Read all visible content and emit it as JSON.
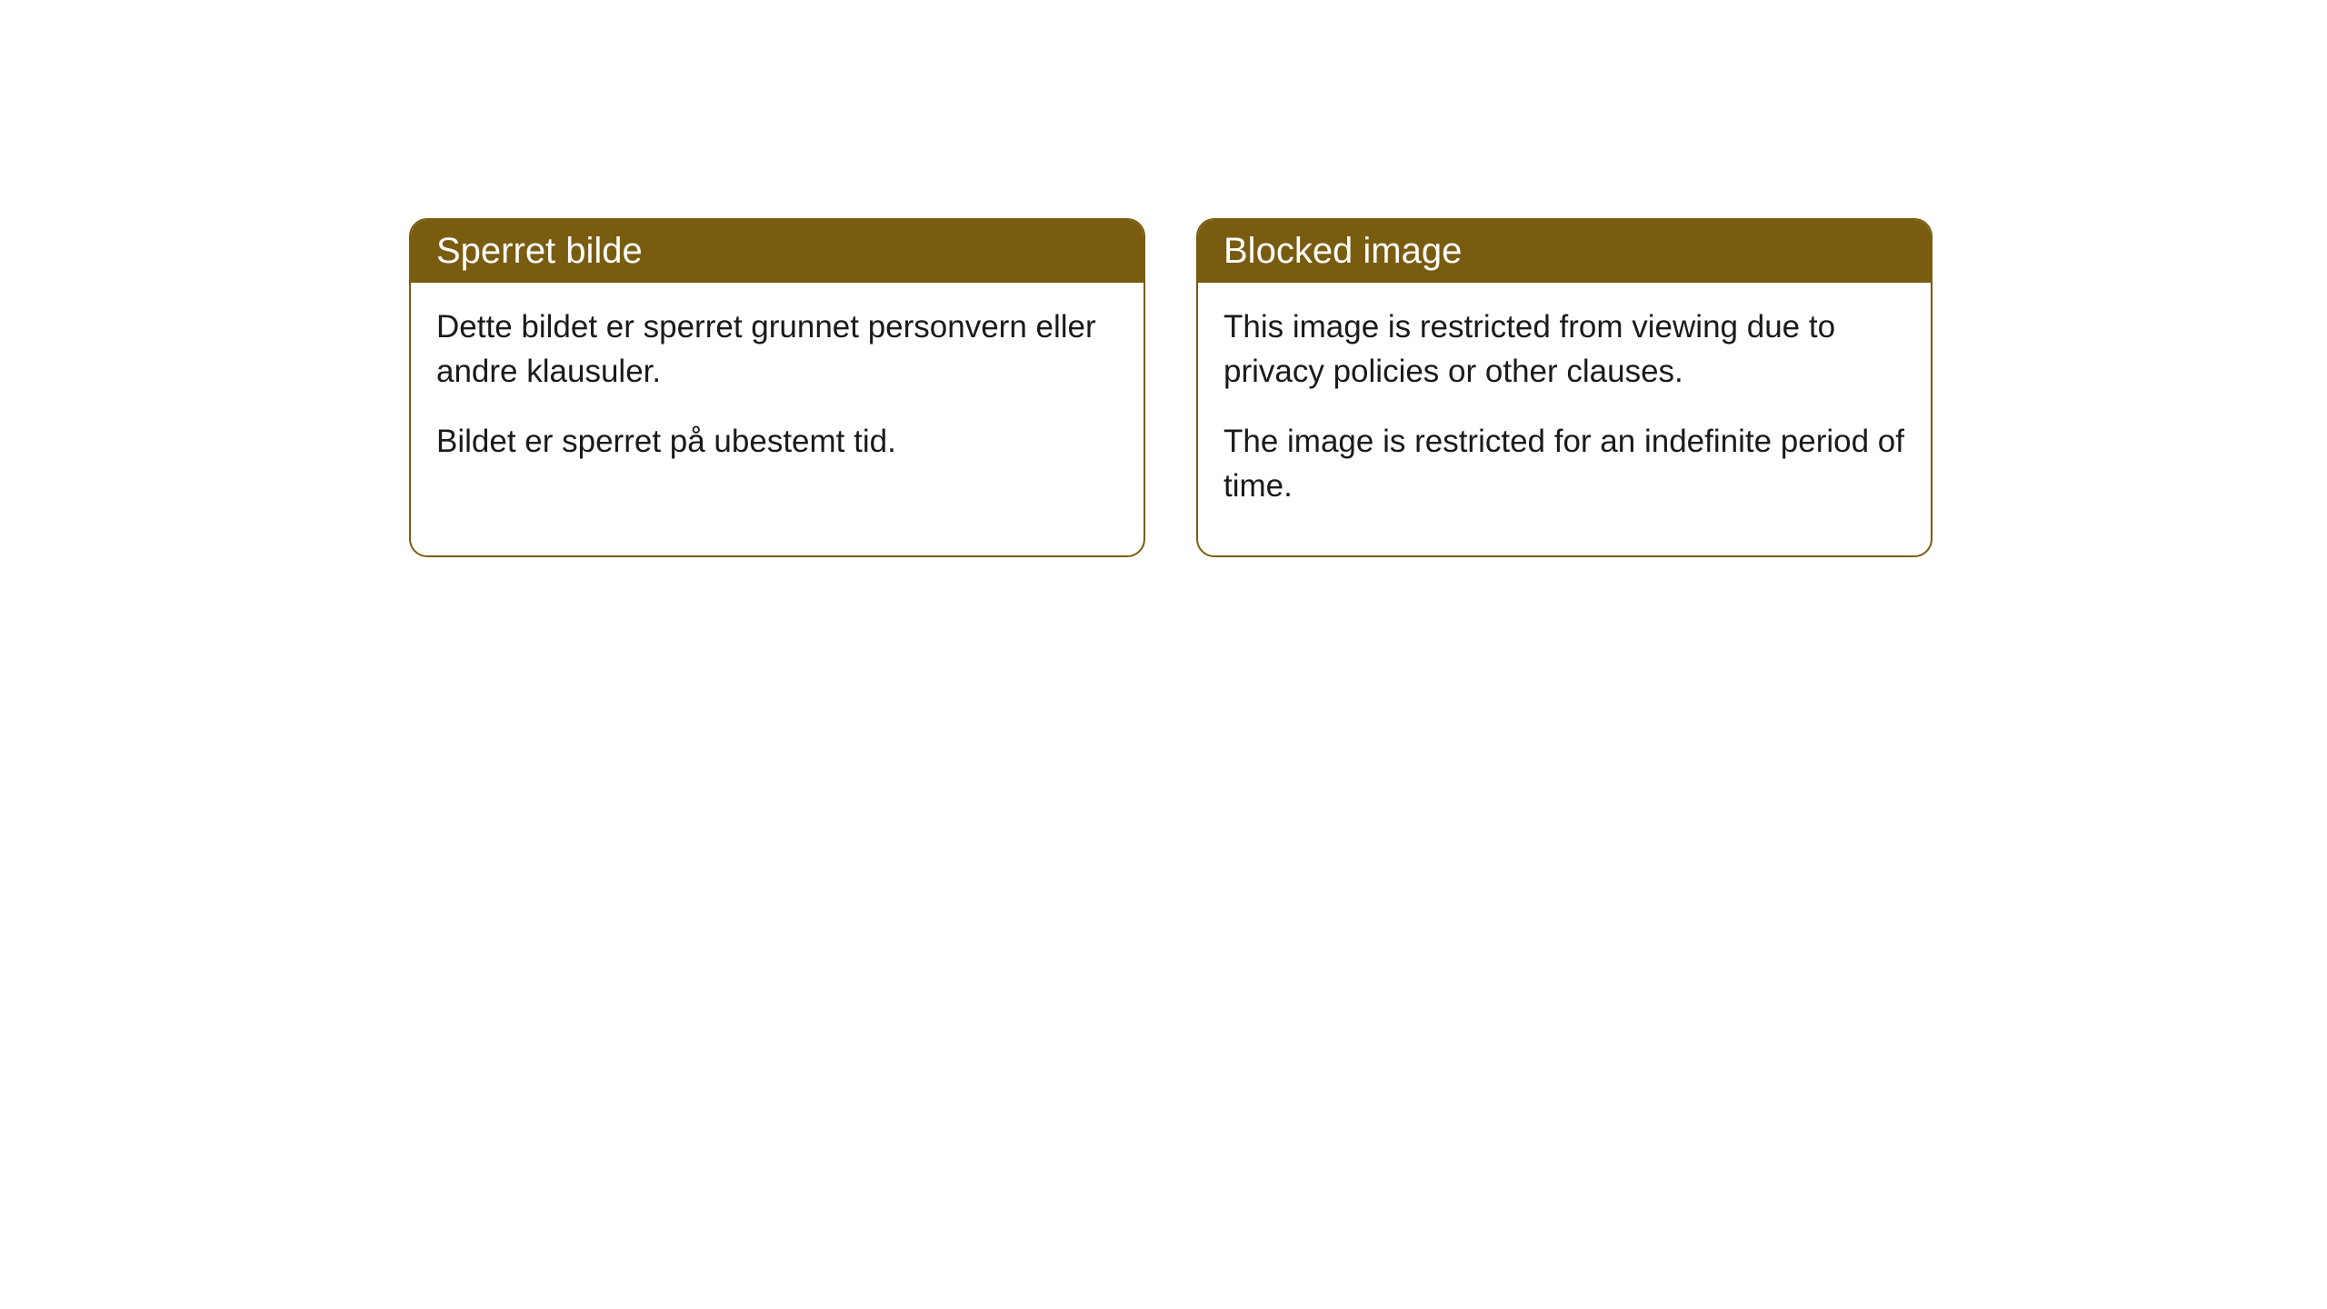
{
  "cards": [
    {
      "title": "Sperret bilde",
      "paragraph1": "Dette bildet er sperret grunnet personvern eller andre klausuler.",
      "paragraph2": "Bildet er sperret på ubestemt tid."
    },
    {
      "title": "Blocked image",
      "paragraph1": "This image is restricted from viewing due to privacy policies or other clauses.",
      "paragraph2": "The image is restricted for an indefinite period of time."
    }
  ],
  "styling": {
    "header_background": "#7a5c10",
    "header_text_color": "#ffffff",
    "border_color": "#7a5c10",
    "body_background": "#ffffff",
    "body_text_color": "#1a1a1a",
    "border_radius": 20,
    "title_fontsize": 40,
    "body_fontsize": 35
  }
}
